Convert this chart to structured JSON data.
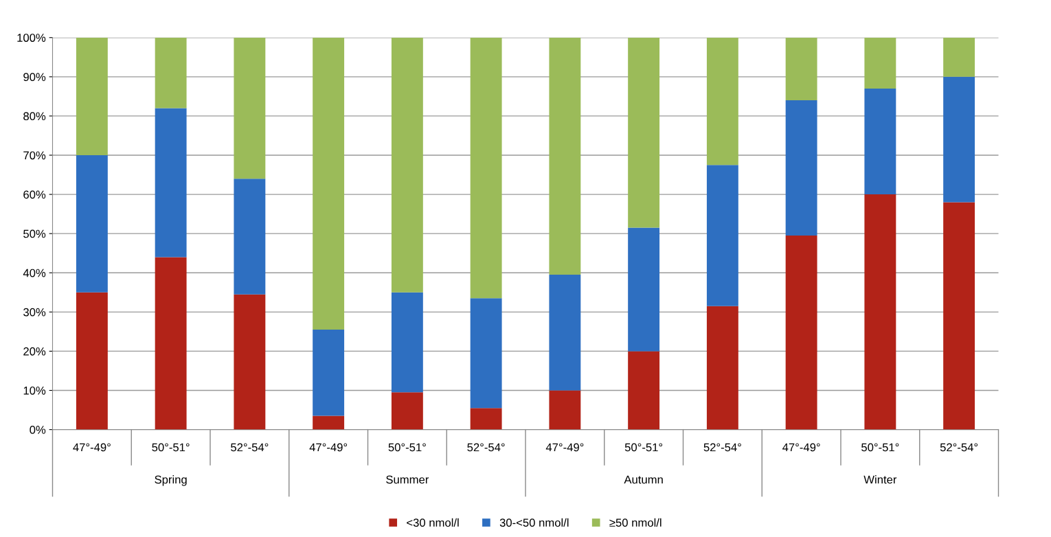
{
  "chart_data": {
    "type": "bar",
    "stacked": true,
    "categories": [
      "47°-49°",
      "50°-51°",
      "52°-54°",
      "47°-49°",
      "50°-51°",
      "52°-54°",
      "47°-49°",
      "50°-51°",
      "52°-54°",
      "47°-49°",
      "50°-51°",
      "52°-54°"
    ],
    "series": [
      {
        "name": "<30 nmol/l",
        "color": "#b22318",
        "values": [
          35,
          44,
          34.5,
          3.5,
          9.5,
          5.5,
          10,
          20,
          31.5,
          49.5,
          60,
          58
        ]
      },
      {
        "name": "30-<50 nmol/l",
        "color": "#2e6fc1",
        "values": [
          35,
          38,
          29.5,
          22,
          25.5,
          28,
          29.5,
          31.5,
          36,
          34.5,
          27,
          32
        ]
      },
      {
        "name": "≥50 nmol/l",
        "color": "#9bbb59",
        "values": [
          30,
          18,
          36,
          74.5,
          65,
          66.5,
          60.5,
          48.5,
          32.5,
          16,
          13,
          10
        ]
      }
    ],
    "annotations": [
      "Spring",
      "Summer",
      "Autumn",
      "Winter"
    ],
    "ylim": [
      0,
      100
    ],
    "yticks": [
      {
        "value": 0,
        "label": "0%"
      },
      {
        "value": 10,
        "label": "10%"
      },
      {
        "value": 20,
        "label": "20%"
      },
      {
        "value": 30,
        "label": "30%"
      },
      {
        "value": 40,
        "label": "40%"
      },
      {
        "value": 50,
        "label": "50%"
      },
      {
        "value": 60,
        "label": "60%"
      },
      {
        "value": 70,
        "label": "70%"
      },
      {
        "value": 80,
        "label": "80%"
      },
      {
        "value": 90,
        "label": "90%"
      },
      {
        "value": 100,
        "label": "100%"
      }
    ],
    "grid": "y",
    "legend": "bottom"
  }
}
